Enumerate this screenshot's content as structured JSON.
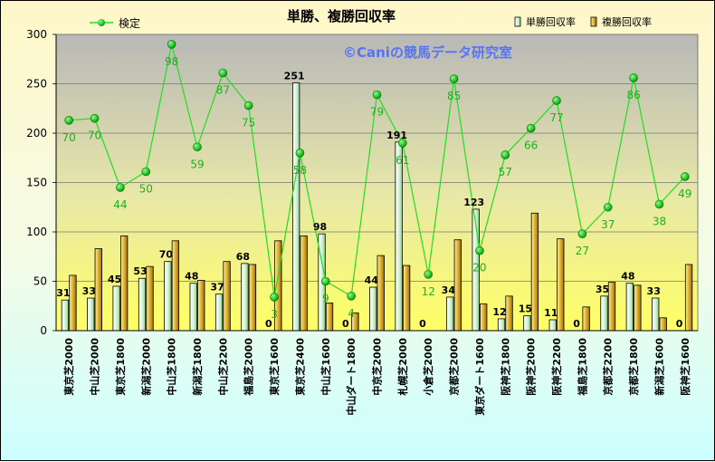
{
  "chart_data": {
    "type": "bar",
    "title": "単勝、複勝回収率",
    "watermark": "©Caniの競馬データ研究室",
    "ylim": [
      0,
      300
    ],
    "yticks": [
      0,
      50,
      100,
      150,
      200,
      250,
      300
    ],
    "grid": true,
    "legend_position": "top",
    "categories": [
      "東京芝2000",
      "中山芝2000",
      "東京芝1800",
      "新潟芝2000",
      "中山芝1800",
      "新潟芝1800",
      "中山芝2200",
      "福島芝2000",
      "東京芝1600",
      "東京芝2400",
      "中山芝1600",
      "中山ダート1800",
      "中京芝2000",
      "札幌芝2000",
      "小倉芝2000",
      "京都芝2000",
      "東京ダート1600",
      "阪神芝1800",
      "阪神芝2000",
      "阪神芝2200",
      "福島芝1800",
      "京都芝2200",
      "京都芝1800",
      "新潟芝1600",
      "阪神芝1600"
    ],
    "series": [
      {
        "name": "単勝回収率",
        "kind": "bar",
        "color": "#c8f0c8",
        "values": [
          31,
          33,
          45,
          53,
          70,
          48,
          37,
          68,
          0,
          251,
          98,
          0,
          44,
          191,
          0,
          34,
          123,
          12,
          15,
          11,
          0,
          35,
          48,
          33,
          0
        ],
        "labels": [
          "31",
          "33",
          "45",
          "53",
          "70",
          "48",
          "37",
          "68",
          "0",
          "251",
          "98",
          "0",
          "44",
          "191",
          "0",
          "34",
          "123",
          "12",
          "15",
          "11",
          "0",
          "35",
          "48",
          "33",
          "0"
        ]
      },
      {
        "name": "複勝回収率",
        "kind": "bar",
        "color": "#d4a020",
        "values": [
          56,
          83,
          96,
          65,
          91,
          51,
          70,
          67,
          91,
          96,
          28,
          18,
          76,
          66,
          0,
          92,
          27,
          35,
          119,
          93,
          24,
          49,
          46,
          13,
          67
        ]
      },
      {
        "name": "検定",
        "kind": "line",
        "color": "#22dd22",
        "values": [
          213,
          215,
          145,
          161,
          290,
          186,
          261,
          228,
          34,
          180,
          50,
          35,
          239,
          190,
          57,
          255,
          81,
          178,
          205,
          233,
          98,
          125,
          256,
          128,
          156
        ],
        "labels": [
          "70",
          "70",
          "44",
          "50",
          "98",
          "59",
          "87",
          "75",
          "3",
          "58",
          "9",
          "4",
          "79",
          "61",
          "12",
          "85",
          "20",
          "57",
          "66",
          "77",
          "27",
          "37",
          "86",
          "38",
          "49"
        ]
      }
    ]
  }
}
